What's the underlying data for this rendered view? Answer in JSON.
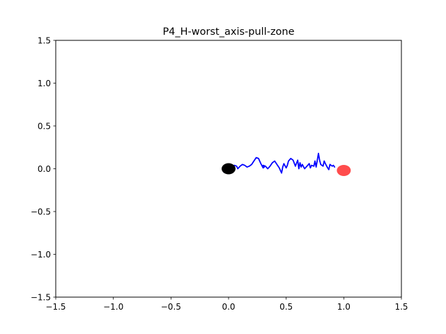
{
  "chart_data": {
    "type": "line",
    "title": "P4_H-worst_axis-pull-zone",
    "xlabel": "",
    "ylabel": "",
    "xlim": [
      -1.5,
      1.5
    ],
    "ylim": [
      -1.5,
      1.5
    ],
    "xticks": [
      -1.5,
      -1.0,
      -0.5,
      0.0,
      0.5,
      1.0,
      1.5
    ],
    "yticks": [
      -1.5,
      -1.0,
      -0.5,
      0.0,
      0.5,
      1.0,
      1.5
    ],
    "xtick_labels": [
      "−1.5",
      "−1.0",
      "−0.5",
      "0.0",
      "0.5",
      "1.0",
      "1.5"
    ],
    "ytick_labels": [
      "−1.5",
      "−1.0",
      "−0.5",
      "0.0",
      "0.5",
      "1.0",
      "1.5"
    ],
    "grid": false,
    "series": [
      {
        "color": "#0000ff",
        "x": [
          -0.05,
          -0.04,
          -0.02,
          0.0,
          0.02,
          0.03,
          0.05,
          0.07,
          0.08,
          0.1,
          0.12,
          0.14,
          0.16,
          0.18,
          0.2,
          0.22,
          0.24,
          0.26,
          0.28,
          0.3,
          0.31,
          0.3,
          0.32,
          0.34,
          0.36,
          0.38,
          0.4,
          0.42,
          0.44,
          0.46,
          0.47,
          0.48,
          0.5,
          0.51,
          0.52,
          0.54,
          0.56,
          0.58,
          0.6,
          0.61,
          0.62,
          0.63,
          0.64,
          0.66,
          0.68,
          0.7,
          0.71,
          0.72,
          0.74,
          0.75,
          0.76,
          0.78,
          0.79,
          0.8,
          0.82,
          0.83,
          0.84,
          0.86,
          0.87,
          0.88,
          0.9,
          0.91,
          0.92
        ],
        "y": [
          0.0,
          -0.04,
          -0.02,
          0.0,
          -0.01,
          0.02,
          0.04,
          0.03,
          0.0,
          0.03,
          0.05,
          0.04,
          0.02,
          0.03,
          0.05,
          0.09,
          0.13,
          0.12,
          0.06,
          0.01,
          0.02,
          0.04,
          0.03,
          0.0,
          0.03,
          0.07,
          0.09,
          0.05,
          0.01,
          -0.05,
          0.02,
          0.06,
          0.01,
          0.04,
          0.09,
          0.12,
          0.1,
          0.03,
          0.1,
          0.0,
          0.07,
          0.02,
          0.05,
          0.0,
          0.03,
          0.06,
          0.01,
          0.04,
          0.03,
          0.09,
          0.02,
          0.18,
          0.1,
          0.05,
          0.03,
          0.09,
          0.06,
          0.01,
          -0.01,
          0.05,
          0.03,
          0.04,
          0.02
        ]
      }
    ],
    "markers": [
      {
        "x": 0.0,
        "y": 0.0,
        "color": "#000000"
      },
      {
        "x": 1.0,
        "y": -0.02,
        "color": "#ff0000",
        "alpha": 0.7
      }
    ]
  }
}
